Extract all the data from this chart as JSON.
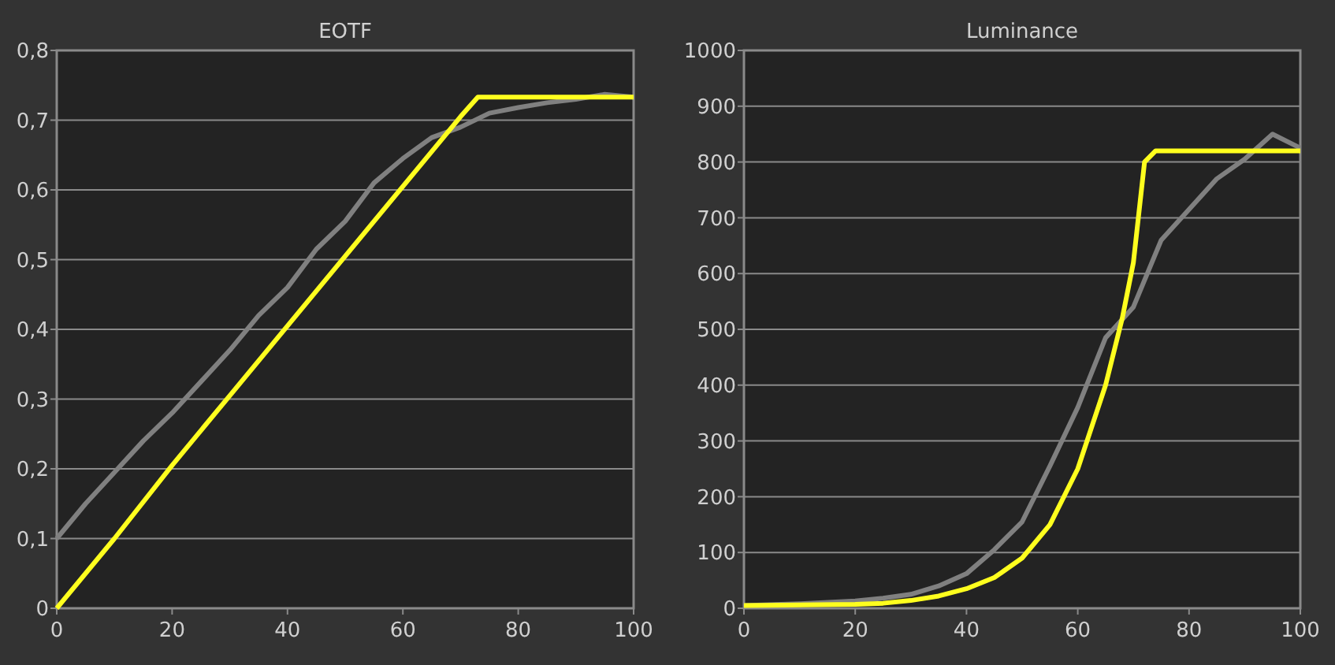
{
  "chart_data": [
    {
      "type": "line",
      "title": "EOTF",
      "xlim": [
        0,
        100
      ],
      "xticks": [
        0,
        20,
        40,
        60,
        80,
        100
      ],
      "ylim": [
        0,
        0.8
      ],
      "yticks": [
        0,
        {
          "value": 0.1,
          "label": "0,1"
        },
        {
          "value": 0.2,
          "label": "0,2"
        },
        {
          "value": 0.3,
          "label": "0,3"
        },
        {
          "value": 0.4,
          "label": "0,4"
        },
        {
          "value": 0.5,
          "label": "0,5"
        },
        {
          "value": 0.6,
          "label": "0,6"
        },
        {
          "value": 0.7,
          "label": "0,7"
        },
        {
          "value": 0.8,
          "label": "0,8"
        }
      ],
      "grid": "y",
      "series": [
        {
          "color": "#808080",
          "x": [
            0,
            5,
            10,
            15,
            20,
            25,
            30,
            35,
            40,
            45,
            50,
            55,
            60,
            65,
            70,
            75,
            80,
            85,
            90,
            95,
            100
          ],
          "values": [
            0.1,
            0.15,
            0.195,
            0.24,
            0.28,
            0.325,
            0.37,
            0.42,
            0.46,
            0.515,
            0.555,
            0.61,
            0.645,
            0.675,
            0.69,
            0.71,
            0.718,
            0.725,
            0.73,
            0.737,
            0.733
          ]
        },
        {
          "color": "#ffff1e",
          "x": [
            0,
            10,
            20,
            30,
            40,
            50,
            60,
            70,
            73,
            100
          ],
          "values": [
            0,
            0.1,
            0.205,
            0.305,
            0.405,
            0.505,
            0.605,
            0.705,
            0.733,
            0.733
          ]
        }
      ]
    },
    {
      "type": "line",
      "title": "Luminance",
      "xlim": [
        0,
        100
      ],
      "xticks": [
        0,
        20,
        40,
        60,
        80,
        100
      ],
      "ylim": [
        0,
        1000
      ],
      "yticks": [
        0,
        100,
        200,
        300,
        400,
        500,
        600,
        700,
        800,
        900,
        1000
      ],
      "grid": "y",
      "series": [
        {
          "color": "#808080",
          "x": [
            0,
            10,
            20,
            25,
            30,
            35,
            40,
            45,
            50,
            55,
            60,
            65,
            70,
            75,
            80,
            85,
            90,
            95,
            100
          ],
          "values": [
            5,
            8,
            13,
            18,
            25,
            40,
            62,
            105,
            155,
            255,
            360,
            485,
            540,
            660,
            715,
            770,
            805,
            850,
            825
          ]
        },
        {
          "color": "#ffff1e",
          "x": [
            0,
            20,
            25,
            30,
            35,
            40,
            45,
            50,
            55,
            60,
            65,
            68,
            70,
            72,
            74,
            100
          ],
          "values": [
            5,
            7,
            9,
            14,
            22,
            35,
            55,
            90,
            150,
            250,
            400,
            520,
            620,
            800,
            820,
            820
          ]
        }
      ]
    }
  ]
}
